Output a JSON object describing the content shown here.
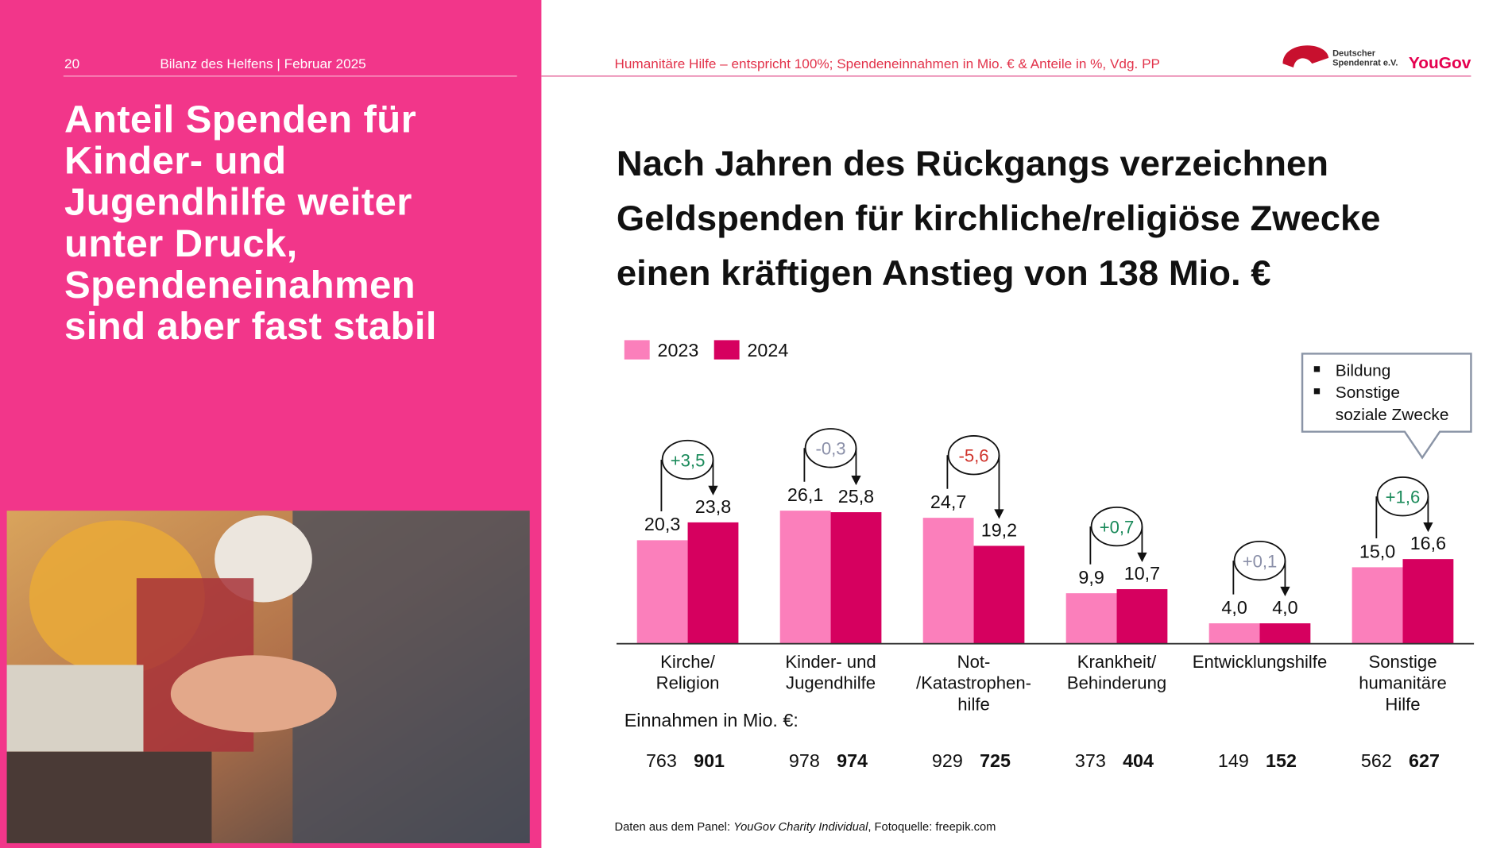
{
  "header": {
    "page_number": "20",
    "report": "Bilanz des Helfens | Februar 2025",
    "source_note": "Humanitäre Hilfe – entspricht 100%; Spendeneinnahmen in Mio. € & Anteile in %, Vdg. PP",
    "logo_line_1": "Deutscher",
    "logo_line_2": "Spendenrat e.V.",
    "brand": "YouGov"
  },
  "left_title": [
    "Anteil Spenden für",
    "Kinder- und",
    "Jugendhilfe weiter",
    "unter Druck,",
    "Spendeneinahmen",
    "sind aber fast stabil"
  ],
  "chart_data": {
    "type": "bar",
    "title": [
      "Nach Jahren des Rückgangs verzeichnen",
      "Geldspenden für kirchliche/religiöse Zwecke",
      "einen kräftigen Anstieg von 138 Mio. €"
    ],
    "categories": [
      [
        "Kirche/",
        "Religion"
      ],
      [
        "Kinder- und",
        "Jugendhilfe"
      ],
      [
        "Not-",
        "/Katastrophen-",
        "hilfe"
      ],
      [
        "Krankheit/",
        "Behinderung"
      ],
      [
        "Entwicklungshilfe"
      ],
      [
        "Sonstige",
        "humanitäre",
        "Hilfe"
      ]
    ],
    "series": [
      {
        "name": "2023",
        "color": "#fb7fbb",
        "values": [
          20.3,
          26.1,
          24.7,
          9.9,
          4.0,
          15.0
        ],
        "value_labels": [
          "20,3",
          "26,1",
          "24,7",
          "9,9",
          "4,0",
          "15,0"
        ]
      },
      {
        "name": "2024",
        "color": "#d6005f",
        "values": [
          23.8,
          25.8,
          19.2,
          10.7,
          4.0,
          16.6
        ],
        "value_labels": [
          "23,8",
          "25,8",
          "19,2",
          "10,7",
          "4,0",
          "16,6"
        ]
      }
    ],
    "changes": {
      "values": [
        3.5,
        -0.3,
        -5.6,
        0.7,
        0.1,
        1.6
      ],
      "value_labels": [
        "+3,5",
        "-0,3",
        "-5,6",
        "+0,7",
        "+0,1",
        "+1,6"
      ],
      "colors": [
        "#1a8a5a",
        "#8a8fa8",
        "#d0342c",
        "#1a8a5a",
        "#8a8fa8",
        "#1a8a5a"
      ]
    },
    "revenue_label": "Einnahmen in Mio. €:",
    "revenue": [
      [
        763,
        978,
        929,
        373,
        149,
        562
      ],
      [
        901,
        974,
        725,
        404,
        152,
        627
      ]
    ],
    "callout": [
      [
        "Bildung"
      ],
      [
        "Sonstige",
        "soziale Zwecke"
      ]
    ]
  },
  "footnote": {
    "prefix": "Daten aus dem Panel: ",
    "panel": "YouGov Charity Individual",
    "suffix": ", Fotoquelle: freepik.com"
  }
}
